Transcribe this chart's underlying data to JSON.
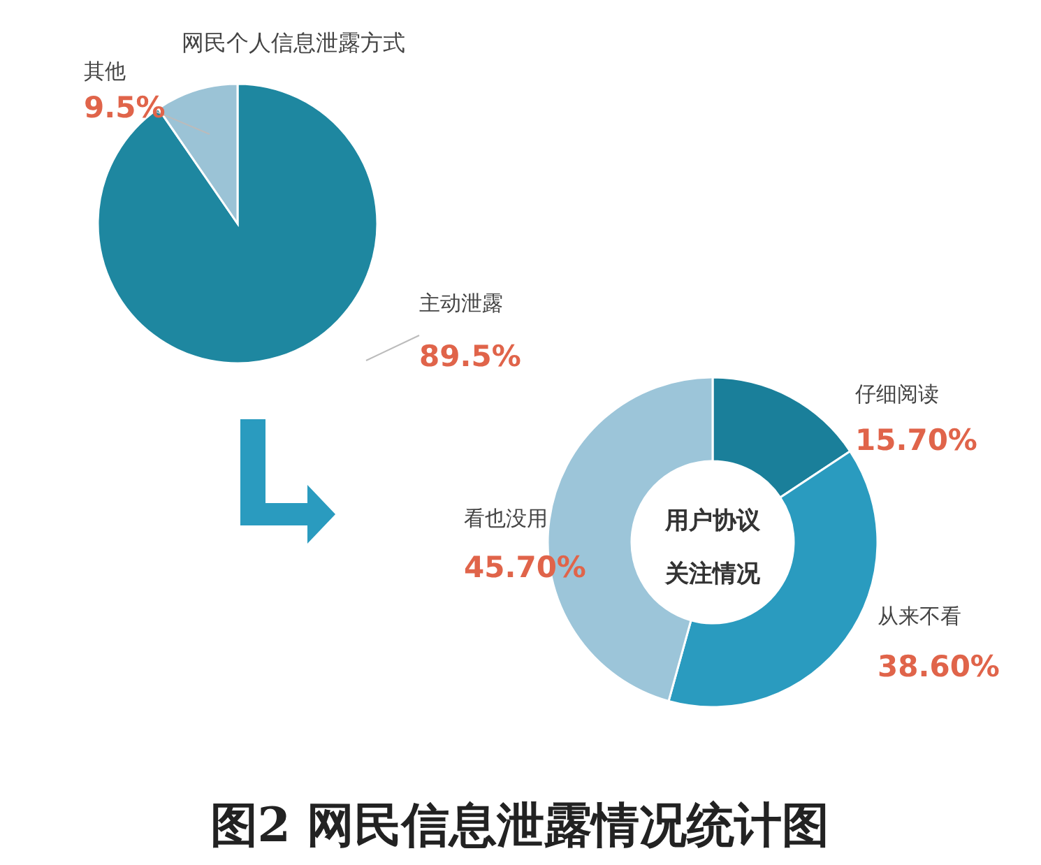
{
  "chart_data": [
    {
      "type": "pie",
      "title": "网民个人信息泄露方式",
      "categories": [
        "主动泄露",
        "其他"
      ],
      "values": [
        89.5,
        9.5
      ],
      "colors": [
        "#1e87a0",
        "#9bc3d6"
      ],
      "value_labels": [
        "89.5%",
        "9.5%"
      ]
    },
    {
      "type": "donut",
      "title": "用户协议关注情况",
      "categories": [
        "仔细阅读",
        "从来不看",
        "看也没用"
      ],
      "values": [
        15.7,
        38.6,
        45.7
      ],
      "colors": [
        "#1a7f9a",
        "#2a9bbf",
        "#9cc5d9"
      ],
      "value_labels": [
        "15.70%",
        "38.60%",
        "45.70%"
      ],
      "annotations": [
        "图2 网民信息泄露情况统计图"
      ]
    }
  ]
}
